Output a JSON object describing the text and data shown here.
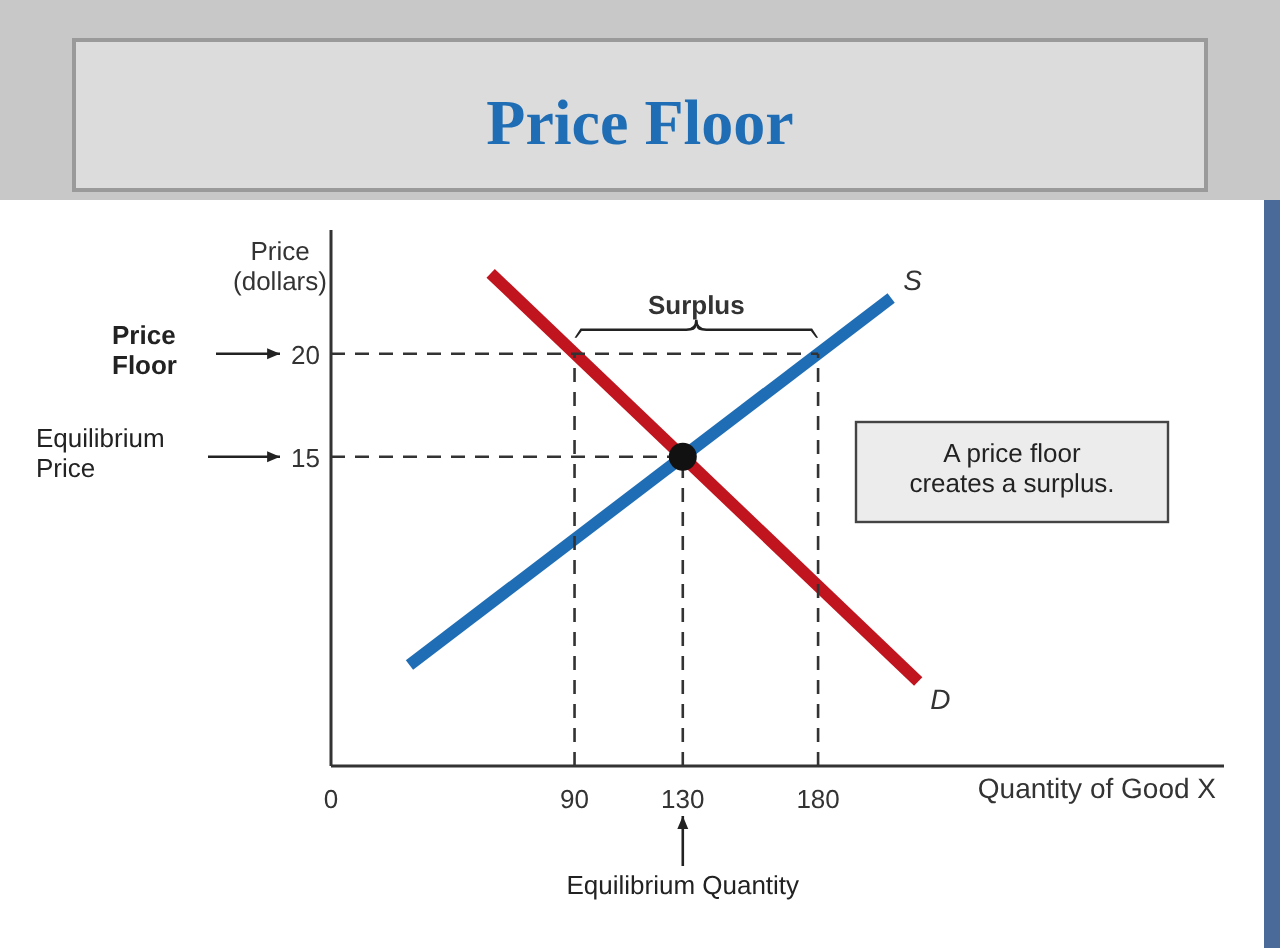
{
  "chart_data": {
    "type": "line",
    "title": "Price Floor",
    "xlabel": "Quantity of Good X",
    "ylabel": "Price\n(dollars)",
    "xlim": [
      0,
      330
    ],
    "ylim": [
      0,
      26
    ],
    "xticks": [
      0,
      90,
      130,
      180
    ],
    "yticks": [
      15,
      20
    ],
    "grid": false,
    "series": [
      {
        "name": "S",
        "color": "#1f6db5",
        "x": [
          29,
          207
        ],
        "values": [
          4.9,
          22.7
        ],
        "line_style": "solid"
      },
      {
        "name": "D",
        "color": "#c0141e",
        "x": [
          59,
          217
        ],
        "values": [
          23.9,
          4.1
        ],
        "line_style": "solid"
      },
      {
        "type": "line",
        "color": "#333333",
        "x": [
          0,
          180
        ],
        "values": [
          20,
          20
        ],
        "line_style": "dashed"
      },
      {
        "type": "line",
        "color": "#333333",
        "x": [
          0,
          130
        ],
        "values": [
          15,
          15
        ],
        "line_style": "dashed"
      },
      {
        "type": "line",
        "color": "#333333",
        "x": [
          90,
          90
        ],
        "values": [
          0,
          20
        ],
        "line_style": "dashed"
      },
      {
        "type": "line",
        "color": "#333333",
        "x": [
          130,
          130
        ],
        "values": [
          0,
          15
        ],
        "line_style": "dashed"
      },
      {
        "type": "line",
        "color": "#333333",
        "x": [
          180,
          180
        ],
        "values": [
          0,
          20
        ],
        "line_style": "dashed"
      },
      {
        "type": "scatter",
        "color": "#111111",
        "x": [
          130
        ],
        "values": [
          15
        ],
        "marker": "circle"
      }
    ],
    "annotations": [
      "Price\nFloor",
      "Equilibrium\nPrice",
      "Equilibrium Quantity",
      {
        "text": "Surplus",
        "x": 135,
        "y": 20
      },
      "A price floor\ncreates a surplus."
    ]
  }
}
